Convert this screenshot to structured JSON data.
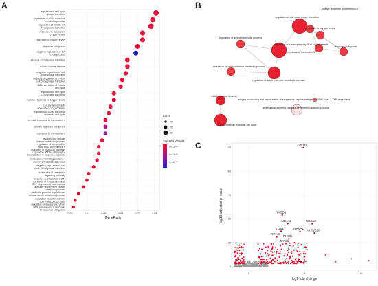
{
  "panels": {
    "a": "A",
    "b": "B",
    "c": "C"
  },
  "chart_data": [
    {
      "panel": "A",
      "type": "scatter",
      "xlabel": "GeneRatio",
      "xlim": [
        0.028,
        0.083
      ],
      "xticks": [
        "0.03",
        "0.04",
        "0.05",
        "0.06",
        "0.07",
        "0.08"
      ],
      "xtick_values": [
        0.03,
        0.04,
        0.05,
        0.06,
        0.07,
        0.08
      ],
      "grid": true,
      "legend_count": {
        "title": "Count",
        "labels": [
          "20",
          "25",
          "30"
        ]
      },
      "legend_color": {
        "title": "Adjusted p-value",
        "labels": [
          "3×10⁻¹⁰",
          "6×10⁻¹⁰",
          "9×10⁻¹⁰"
        ]
      },
      "colors": {
        "low": "#e8102e",
        "mid": "#a01a9a",
        "high": "#1a1ad0"
      },
      "terms": [
        {
          "label": "regulation of cell cycle\nphase transition",
          "x": 0.081,
          "count": 32,
          "p": 0.05
        },
        {
          "label": "regulation of small molecule\nmetabolic process",
          "x": 0.079,
          "count": 31,
          "p": 0.05
        },
        {
          "label": "regulation of mitotic cell\ncycle phase transition",
          "x": 0.078,
          "count": 31,
          "p": 0.05
        },
        {
          "label": "response to decreased\noxygen levels",
          "x": 0.073,
          "count": 29,
          "p": 0.05
        },
        {
          "label": "response to oxygen levels",
          "x": 0.073,
          "count": 29,
          "p": 0.05
        },
        {
          "label": "response to hypoxia",
          "x": 0.07,
          "count": 28,
          "p": 0.05
        },
        {
          "label": "negative regulation of cell\ncycle process",
          "x": 0.069,
          "count": 28,
          "p": 0.95
        },
        {
          "label": "cell cycle G2/M phase transition",
          "x": 0.064,
          "count": 26,
          "p": 0.05
        },
        {
          "label": "mitotic nuclear division",
          "x": 0.064,
          "count": 26,
          "p": 0.05
        },
        {
          "label": "negative regulation of cell\ncycle phase transition",
          "x": 0.063,
          "count": 25,
          "p": 0.05
        },
        {
          "label": "negative regulation of mitotic\ncell cycle phase transition",
          "x": 0.061,
          "count": 25,
          "p": 0.05
        },
        {
          "label": "G2/M transition of mitotic\ncell cycle",
          "x": 0.06,
          "count": 24,
          "p": 0.05
        },
        {
          "label": "regulation of cell cycle\nG2/M phase transition",
          "x": 0.056,
          "count": 23,
          "p": 0.05
        },
        {
          "label": "cellular response to oxygen levels",
          "x": 0.056,
          "count": 23,
          "p": 0.05
        },
        {
          "label": "cellular response to\ndecreased oxygen levels",
          "x": 0.054,
          "count": 22,
          "p": 0.05
        },
        {
          "label": "regulation of G2/M transition\nof mitotic cell cycle",
          "x": 0.053,
          "count": 22,
          "p": 0.05
        },
        {
          "label": "cellular response to interleukin−1",
          "x": 0.051,
          "count": 21,
          "p": 0.05
        },
        {
          "label": "cellular response to hypoxia",
          "x": 0.051,
          "count": 21,
          "p": 0.4
        },
        {
          "label": "response to interleukin−1",
          "x": 0.051,
          "count": 21,
          "p": 0.55
        },
        {
          "label": "regulation of cellular\nketone metabolic process",
          "x": 0.049,
          "count": 20,
          "p": 0.05
        },
        {
          "label": "regulation of transcription\nfrom RNA polymerase II\npromoter in response to stress",
          "x": 0.047,
          "count": 19,
          "p": 0.05
        },
        {
          "label": "regulation of DNA−templated\ntranscription in response to stress",
          "x": 0.047,
          "count": 19,
          "p": 0.05
        },
        {
          "label": "anaphase−promoting complex−\ndependent catabolic process",
          "x": 0.046,
          "count": 19,
          "p": 0.05
        },
        {
          "label": "negative regulation of cell\ncycle G2/M phase transition",
          "x": 0.044,
          "count": 18,
          "p": 0.05
        },
        {
          "label": "interleukin−1−mediated\nsignaling pathway",
          "x": 0.041,
          "count": 17,
          "p": 0.05
        },
        {
          "label": "negative regulation of G2/M\ntransition of mitotic cell cycle",
          "x": 0.04,
          "count": 16,
          "p": 0.05
        },
        {
          "label": "SCF−dependent proteasomal\nubiquitin−dependent protein\ncatabolic process",
          "x": 0.038,
          "count": 16,
          "p": 0.05
        },
        {
          "label": "catabolic process regulation of\ncellular amine metabolic process",
          "x": 0.035,
          "count": 15,
          "p": 0.05
        },
        {
          "label": "regulation of cellular amino\nacid metabolic process",
          "x": 0.033,
          "count": 14,
          "p": 0.05
        },
        {
          "label": "regulation of transcription from\nRNA polymerase II promoter\nin response to hypoxia",
          "x": 0.032,
          "count": 13,
          "p": 0.05
        }
      ]
    },
    {
      "panel": "B",
      "type": "network",
      "nodes": [
        {
          "id": "n1",
          "label": "regulation of cell cycle phase transition",
          "size": 11,
          "color": "#e82030"
        },
        {
          "id": "n2",
          "label": "cellular response to interleukin-1",
          "size": 6,
          "color": "#ec3a40"
        },
        {
          "id": "n3",
          "label": "response to oxygen levels",
          "size": 6,
          "color": "#ec3a40"
        },
        {
          "id": "n4",
          "label": "response to interleukin-1",
          "size": 6,
          "color": "#ec3a40"
        },
        {
          "id": "n5",
          "label": "response to hypoxia",
          "size": 6,
          "color": "#ec3a40"
        },
        {
          "id": "n6",
          "label": "regulation of amine metabolic process",
          "size": 6,
          "color": "#ec3a40"
        },
        {
          "id": "n7",
          "label": "regulation of transcription by RNA polymerase II",
          "size": 11,
          "color": "#e82030"
        },
        {
          "id": "n8",
          "label": "regulation of cellular ketone metabolic process",
          "size": 6,
          "color": "#ec3a40"
        },
        {
          "id": "n9",
          "label": "regulation of small molecule metabolic process",
          "size": 9,
          "color": "#e82030"
        },
        {
          "id": "n10",
          "label": "mitotic nuclear division",
          "size": 7,
          "color": "#e82030"
        },
        {
          "id": "n11",
          "label": "antigen processing and presentation of exogenous peptide antigen via MHC class I, TAP-dependent",
          "size": 3,
          "color": "#f06a70"
        },
        {
          "id": "n12",
          "label": "anaphase-promoting complex-dependent catabolic process",
          "size": 8,
          "color": "#f8dede"
        },
        {
          "id": "n13",
          "label": "G2/M transition of mitotic cell cycle",
          "size": 9,
          "color": "#e82030"
        }
      ],
      "edges": [
        [
          "n1",
          "n7"
        ],
        [
          "n6",
          "n7"
        ],
        [
          "n6",
          "n9"
        ],
        [
          "n8",
          "n9"
        ],
        [
          "n7",
          "n9"
        ],
        [
          "n3",
          "n5"
        ],
        [
          "n2",
          "n4"
        ],
        [
          "n4",
          "n5"
        ],
        [
          "n2",
          "n5"
        ],
        [
          "n10",
          "n13"
        ]
      ]
    },
    {
      "panel": "C",
      "type": "scatter",
      "xlabel": "log2 fold change",
      "ylabel": "−log10 adjusted p−value",
      "xlim": [
        -1.5,
        11.5
      ],
      "ylim": [
        -4,
        130
      ],
      "xticks": [
        "0",
        "5",
        "10"
      ],
      "xtick_values": [
        0,
        5,
        10
      ],
      "yticks": [
        "0",
        "25",
        "50",
        "75",
        "100",
        "125"
      ],
      "ytick_values": [
        0,
        25,
        50,
        75,
        100,
        125
      ],
      "colors": {
        "sig": "#d10f2c",
        "ns": "#9a9a9a"
      },
      "labeled_genes": [
        {
          "label": "SIK1B",
          "x": 4.9,
          "y": 125
        },
        {
          "label": "RASD1",
          "x": 3.0,
          "y": 54
        },
        {
          "label": "NR4A2",
          "x": 3.5,
          "y": 45
        },
        {
          "label": "NR4A3",
          "x": 5.7,
          "y": 45
        },
        {
          "label": "TOB1",
          "x": 2.9,
          "y": 37
        },
        {
          "label": "NR4A1",
          "x": 4.6,
          "y": 37
        },
        {
          "label": "AKR1B10",
          "x": 5.9,
          "y": 35
        },
        {
          "label": "RRAD",
          "x": 2.5,
          "y": 31
        },
        {
          "label": "RHOB",
          "x": 3.6,
          "y": 29
        },
        {
          "label": "ZFP36",
          "x": 3.3,
          "y": 24
        }
      ]
    }
  ]
}
